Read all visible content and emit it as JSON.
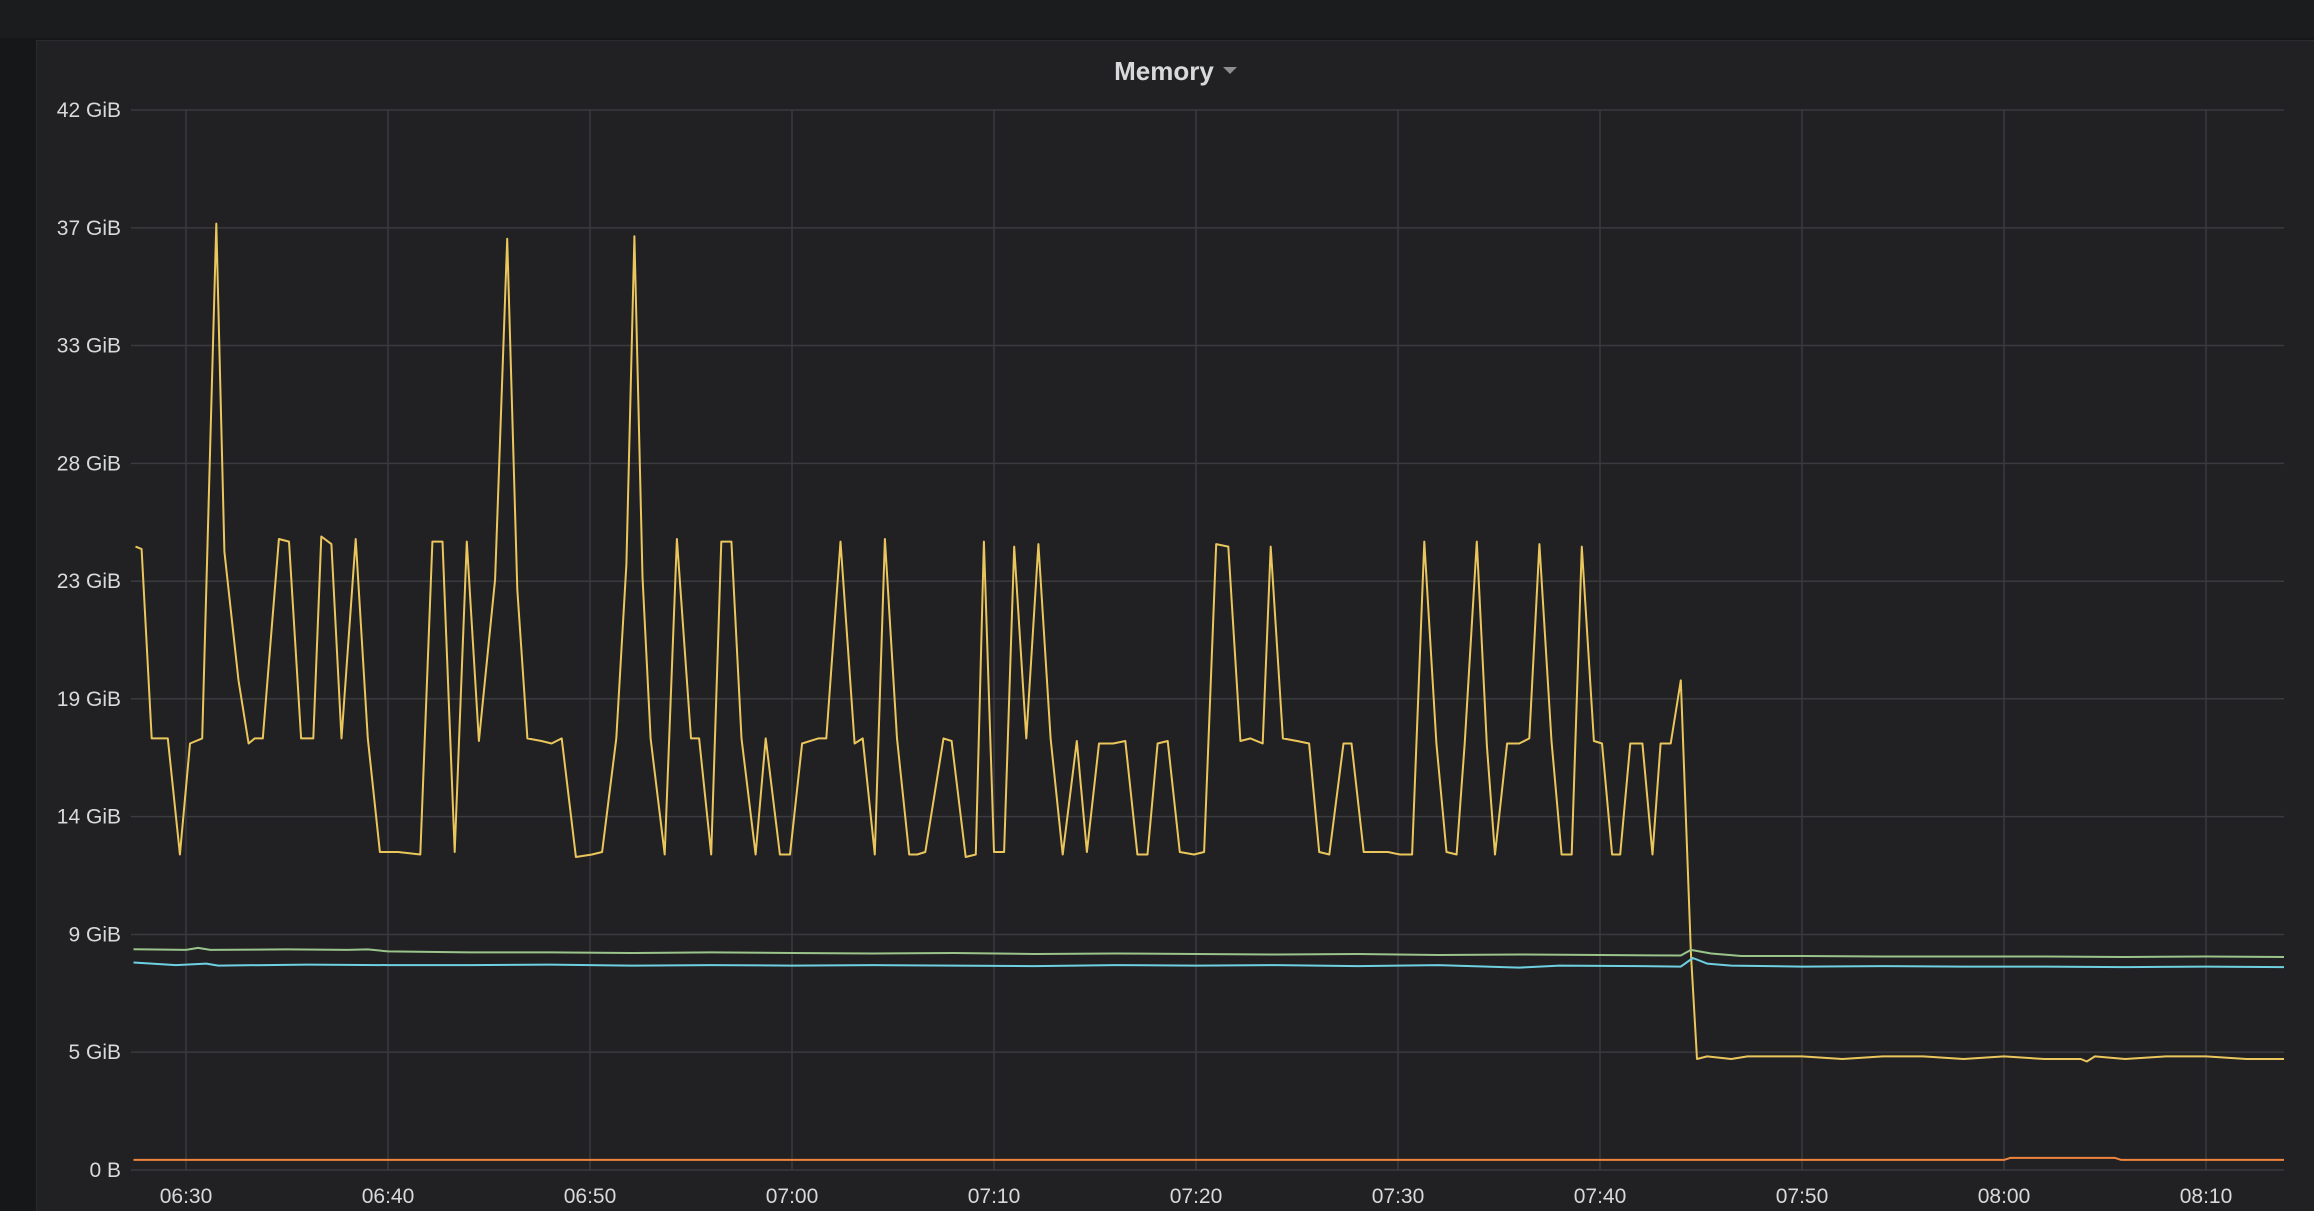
{
  "panel": {
    "title": "Memory",
    "menu_icon": "caret-down-icon"
  },
  "colors": {
    "background": "#212124",
    "grid": "#3a3b3e",
    "text": "#d8d9da",
    "series_yellow": "#eac65c",
    "series_green": "#9ac48a",
    "series_blue": "#6ed0e0",
    "series_orange": "#ef843c"
  },
  "chart_data": {
    "type": "line",
    "title": "Memory",
    "ylim_gib": [
      0,
      42
    ],
    "y_ticks": [
      {
        "value": 0,
        "label": "0 B"
      },
      {
        "value": 4.67,
        "label": "5 GiB"
      },
      {
        "value": 9.33,
        "label": "9 GiB"
      },
      {
        "value": 14,
        "label": "14 GiB"
      },
      {
        "value": 18.67,
        "label": "19 GiB"
      },
      {
        "value": 23.33,
        "label": "23 GiB"
      },
      {
        "value": 28,
        "label": "28 GiB"
      },
      {
        "value": 32.67,
        "label": "33 GiB"
      },
      {
        "value": 37.33,
        "label": "37 GiB"
      },
      {
        "value": 42,
        "label": "42 GiB"
      }
    ],
    "x_ticks": [
      "06:30",
      "06:40",
      "06:50",
      "07:00",
      "07:10",
      "07:20",
      "07:30",
      "07:40",
      "07:50",
      "08:00",
      "08:10"
    ],
    "x_range_minutes_after_0630": [
      -2.6,
      103.9
    ],
    "grid": true,
    "legend": "none",
    "series": [
      {
        "color_key": "series_yellow",
        "points": [
          [
            -2.5,
            24.7
          ],
          [
            -2.2,
            24.6
          ],
          [
            -1.7,
            17.1
          ],
          [
            -1.1,
            17.1
          ],
          [
            -0.9,
            17.1
          ],
          [
            -0.3,
            12.5
          ],
          [
            0.2,
            16.9
          ],
          [
            0.8,
            17.1
          ],
          [
            1.5,
            37.5
          ],
          [
            1.9,
            24.5
          ],
          [
            2.6,
            19.4
          ],
          [
            3.1,
            16.9
          ],
          [
            3.4,
            17.1
          ],
          [
            3.8,
            17.1
          ],
          [
            4.6,
            25.0
          ],
          [
            5.1,
            24.9
          ],
          [
            5.7,
            17.1
          ],
          [
            6.3,
            17.1
          ],
          [
            6.7,
            25.1
          ],
          [
            7.2,
            24.8
          ],
          [
            7.7,
            17.1
          ],
          [
            8.4,
            25.0
          ],
          [
            9.0,
            17.1
          ],
          [
            9.6,
            12.6
          ],
          [
            10.5,
            12.6
          ],
          [
            11.6,
            12.5
          ],
          [
            12.2,
            24.9
          ],
          [
            12.7,
            24.9
          ],
          [
            13.3,
            12.6
          ],
          [
            13.9,
            24.9
          ],
          [
            14.5,
            17.0
          ],
          [
            15.3,
            23.4
          ],
          [
            15.9,
            36.9
          ],
          [
            16.4,
            23.0
          ],
          [
            16.9,
            17.1
          ],
          [
            17.6,
            17.0
          ],
          [
            18.1,
            16.9
          ],
          [
            18.6,
            17.1
          ],
          [
            19.3,
            12.4
          ],
          [
            20.1,
            12.5
          ],
          [
            20.6,
            12.6
          ],
          [
            21.3,
            17.1
          ],
          [
            21.8,
            24.0
          ],
          [
            22.2,
            37.0
          ],
          [
            22.6,
            23.5
          ],
          [
            23.0,
            17.1
          ],
          [
            23.7,
            12.5
          ],
          [
            24.3,
            25.0
          ],
          [
            25.0,
            17.1
          ],
          [
            25.4,
            17.1
          ],
          [
            26.0,
            12.5
          ],
          [
            26.5,
            24.9
          ],
          [
            27.0,
            24.9
          ],
          [
            27.5,
            17.1
          ],
          [
            28.2,
            12.5
          ],
          [
            28.7,
            17.1
          ],
          [
            29.4,
            12.5
          ],
          [
            29.9,
            12.5
          ],
          [
            30.5,
            16.9
          ],
          [
            31.3,
            17.1
          ],
          [
            31.7,
            17.1
          ],
          [
            32.4,
            24.9
          ],
          [
            33.1,
            16.9
          ],
          [
            33.5,
            17.1
          ],
          [
            34.1,
            12.5
          ],
          [
            34.6,
            25.0
          ],
          [
            35.2,
            17.1
          ],
          [
            35.8,
            12.5
          ],
          [
            36.2,
            12.5
          ],
          [
            36.6,
            12.6
          ],
          [
            37.5,
            17.1
          ],
          [
            37.9,
            17.0
          ],
          [
            38.6,
            12.4
          ],
          [
            39.1,
            12.5
          ],
          [
            39.5,
            24.9
          ],
          [
            40.0,
            12.6
          ],
          [
            40.5,
            12.6
          ],
          [
            41.0,
            24.7
          ],
          [
            41.6,
            17.1
          ],
          [
            42.2,
            24.8
          ],
          [
            42.8,
            17.1
          ],
          [
            43.4,
            12.5
          ],
          [
            44.1,
            17.0
          ],
          [
            44.6,
            12.6
          ],
          [
            45.2,
            16.9
          ],
          [
            45.9,
            16.9
          ],
          [
            46.5,
            17.0
          ],
          [
            47.1,
            12.5
          ],
          [
            47.6,
            12.5
          ],
          [
            48.1,
            16.9
          ],
          [
            48.6,
            17.0
          ],
          [
            49.2,
            12.6
          ],
          [
            49.9,
            12.5
          ],
          [
            50.4,
            12.6
          ],
          [
            51.0,
            24.8
          ],
          [
            51.6,
            24.7
          ],
          [
            52.2,
            17.0
          ],
          [
            52.7,
            17.1
          ],
          [
            53.3,
            16.9
          ],
          [
            53.7,
            24.7
          ],
          [
            54.3,
            17.1
          ],
          [
            55.0,
            17.0
          ],
          [
            55.6,
            16.9
          ],
          [
            56.1,
            12.6
          ],
          [
            56.6,
            12.5
          ],
          [
            57.3,
            16.9
          ],
          [
            57.7,
            16.9
          ],
          [
            58.3,
            12.6
          ],
          [
            58.9,
            12.6
          ],
          [
            59.5,
            12.6
          ],
          [
            60.1,
            12.5
          ],
          [
            60.7,
            12.5
          ],
          [
            61.3,
            24.9
          ],
          [
            61.9,
            16.9
          ],
          [
            62.4,
            12.6
          ],
          [
            62.9,
            12.5
          ],
          [
            63.3,
            16.9
          ],
          [
            63.9,
            24.9
          ],
          [
            64.4,
            16.8
          ],
          [
            64.8,
            12.5
          ],
          [
            65.4,
            16.9
          ],
          [
            66.0,
            16.9
          ],
          [
            66.5,
            17.1
          ],
          [
            67.0,
            24.8
          ],
          [
            67.6,
            17.0
          ],
          [
            68.1,
            12.5
          ],
          [
            68.6,
            12.5
          ],
          [
            69.1,
            24.7
          ],
          [
            69.7,
            17.0
          ],
          [
            70.1,
            16.9
          ],
          [
            70.6,
            12.5
          ],
          [
            71.0,
            12.5
          ],
          [
            71.5,
            16.9
          ],
          [
            72.1,
            16.9
          ],
          [
            72.6,
            12.5
          ],
          [
            73.0,
            16.9
          ],
          [
            73.5,
            16.9
          ],
          [
            74.0,
            19.4
          ],
          [
            74.5,
            8.6
          ],
          [
            74.8,
            4.4
          ],
          [
            75.3,
            4.5
          ],
          [
            76.5,
            4.4
          ],
          [
            77.3,
            4.5
          ],
          [
            78.5,
            4.5
          ],
          [
            80.0,
            4.5
          ],
          [
            82.0,
            4.4
          ],
          [
            84.0,
            4.5
          ],
          [
            86.0,
            4.5
          ],
          [
            88.0,
            4.4
          ],
          [
            90.0,
            4.5
          ],
          [
            92.0,
            4.4
          ],
          [
            93.8,
            4.4
          ],
          [
            94.1,
            4.3
          ],
          [
            94.5,
            4.5
          ],
          [
            96.0,
            4.4
          ],
          [
            98.0,
            4.5
          ],
          [
            100.0,
            4.5
          ],
          [
            102.0,
            4.4
          ],
          [
            103.9,
            4.4
          ]
        ]
      },
      {
        "color_key": "series_green",
        "points": [
          [
            -2.6,
            8.75
          ],
          [
            0.0,
            8.72
          ],
          [
            0.6,
            8.8
          ],
          [
            1.2,
            8.72
          ],
          [
            5.0,
            8.74
          ],
          [
            8.0,
            8.72
          ],
          [
            9.0,
            8.74
          ],
          [
            10.0,
            8.66
          ],
          [
            14.0,
            8.62
          ],
          [
            18.0,
            8.62
          ],
          [
            22.0,
            8.6
          ],
          [
            26.0,
            8.62
          ],
          [
            30.0,
            8.6
          ],
          [
            34.0,
            8.58
          ],
          [
            38.0,
            8.6
          ],
          [
            42.0,
            8.56
          ],
          [
            46.0,
            8.58
          ],
          [
            50.0,
            8.56
          ],
          [
            54.0,
            8.54
          ],
          [
            58.0,
            8.56
          ],
          [
            62.0,
            8.52
          ],
          [
            66.0,
            8.54
          ],
          [
            70.0,
            8.52
          ],
          [
            74.0,
            8.5
          ],
          [
            74.5,
            8.72
          ],
          [
            75.5,
            8.58
          ],
          [
            77.0,
            8.48
          ],
          [
            80.0,
            8.48
          ],
          [
            84.0,
            8.46
          ],
          [
            88.0,
            8.46
          ],
          [
            92.0,
            8.46
          ],
          [
            96.0,
            8.44
          ],
          [
            100.0,
            8.46
          ],
          [
            103.9,
            8.44
          ]
        ]
      },
      {
        "color_key": "series_blue",
        "points": [
          [
            -2.6,
            8.22
          ],
          [
            -0.5,
            8.12
          ],
          [
            1.0,
            8.18
          ],
          [
            1.6,
            8.1
          ],
          [
            6.0,
            8.14
          ],
          [
            10.0,
            8.12
          ],
          [
            14.0,
            8.12
          ],
          [
            18.0,
            8.14
          ],
          [
            22.0,
            8.1
          ],
          [
            26.0,
            8.12
          ],
          [
            30.0,
            8.1
          ],
          [
            34.0,
            8.12
          ],
          [
            38.0,
            8.1
          ],
          [
            42.0,
            8.08
          ],
          [
            46.0,
            8.12
          ],
          [
            50.0,
            8.1
          ],
          [
            54.0,
            8.12
          ],
          [
            58.0,
            8.08
          ],
          [
            62.0,
            8.12
          ],
          [
            66.0,
            8.02
          ],
          [
            68.0,
            8.1
          ],
          [
            72.0,
            8.08
          ],
          [
            74.0,
            8.06
          ],
          [
            74.6,
            8.4
          ],
          [
            75.3,
            8.18
          ],
          [
            76.5,
            8.1
          ],
          [
            80.0,
            8.06
          ],
          [
            84.0,
            8.08
          ],
          [
            88.0,
            8.06
          ],
          [
            92.0,
            8.06
          ],
          [
            96.0,
            8.04
          ],
          [
            100.0,
            8.06
          ],
          [
            103.9,
            8.04
          ]
        ]
      },
      {
        "color_key": "series_orange",
        "points": [
          [
            -2.6,
            0.4
          ],
          [
            20.0,
            0.4
          ],
          [
            40.0,
            0.4
          ],
          [
            60.0,
            0.4
          ],
          [
            80.0,
            0.4
          ],
          [
            90.0,
            0.4
          ],
          [
            90.3,
            0.48
          ],
          [
            95.5,
            0.48
          ],
          [
            95.8,
            0.4
          ],
          [
            103.9,
            0.4
          ]
        ]
      }
    ]
  }
}
